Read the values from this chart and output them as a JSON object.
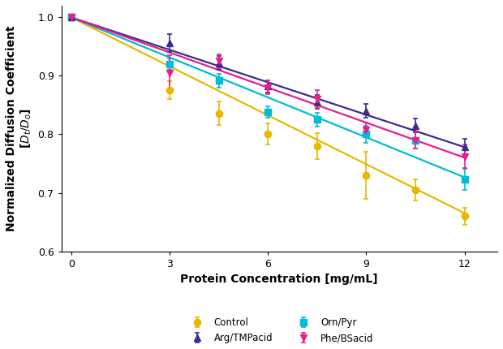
{
  "series": [
    {
      "label": "Control",
      "color": "#E8B800",
      "marker": "o",
      "marker_size": 6,
      "x_data": [
        0,
        3,
        4.5,
        6,
        7.5,
        9,
        10.5,
        12
      ],
      "y_data": [
        1.0,
        0.876,
        0.836,
        0.801,
        0.78,
        0.73,
        0.705,
        0.66
      ],
      "y_err": [
        0.0,
        0.015,
        0.02,
        0.018,
        0.022,
        0.04,
        0.018,
        0.015
      ],
      "fit_slope": -0.0279,
      "fit_intercept": 1.0
    },
    {
      "label": "Orn/Pyr",
      "color": "#00BCD4",
      "marker": "s",
      "marker_size": 6,
      "x_data": [
        0,
        3,
        4.5,
        6,
        7.5,
        9,
        10.5,
        12
      ],
      "y_data": [
        1.0,
        0.92,
        0.892,
        0.838,
        0.825,
        0.8,
        0.79,
        0.723
      ],
      "y_err": [
        0.0,
        0.01,
        0.012,
        0.01,
        0.012,
        0.015,
        0.015,
        0.018
      ],
      "fit_slope": -0.0228,
      "fit_intercept": 1.0
    },
    {
      "label": "Arg/TMPacid",
      "color": "#3D2B8E",
      "marker": "^",
      "marker_size": 6,
      "x_data": [
        0,
        3,
        4.5,
        6,
        7.5,
        9,
        10.5,
        12
      ],
      "y_data": [
        1.0,
        0.956,
        0.922,
        0.882,
        0.855,
        0.84,
        0.815,
        0.778
      ],
      "y_err": [
        0.0,
        0.015,
        0.012,
        0.01,
        0.012,
        0.012,
        0.012,
        0.015
      ],
      "fit_slope": -0.0185,
      "fit_intercept": 1.0
    },
    {
      "label": "Phe/BSacid",
      "color": "#E91E8C",
      "marker": "v",
      "marker_size": 6,
      "x_data": [
        0,
        3,
        4.5,
        6,
        7.5,
        9,
        10.5,
        12
      ],
      "y_data": [
        1.0,
        0.905,
        0.925,
        0.88,
        0.86,
        0.808,
        0.79,
        0.762
      ],
      "y_err": [
        0.0,
        0.03,
        0.012,
        0.012,
        0.015,
        0.012,
        0.015,
        0.02
      ],
      "fit_slope": -0.02,
      "fit_intercept": 1.0
    }
  ],
  "xlabel": "Protein Concentration [mg/mL]",
  "ylabel": "Normalized Diffusion Coefficient\n[$D_t/D_o$]",
  "xlim": [
    -0.3,
    13
  ],
  "ylim": [
    0.6,
    1.02
  ],
  "yticks": [
    0.6,
    0.7,
    0.8,
    0.9,
    1.0
  ],
  "xticks": [
    0,
    3,
    6,
    9,
    12
  ],
  "background_color": "#ffffff",
  "legend_ncol": 2,
  "legend_fontsize": 8.5,
  "axis_label_fontsize": 10,
  "tick_fontsize": 9,
  "figsize": [
    6.2,
    4.3
  ],
  "dpi": 100
}
